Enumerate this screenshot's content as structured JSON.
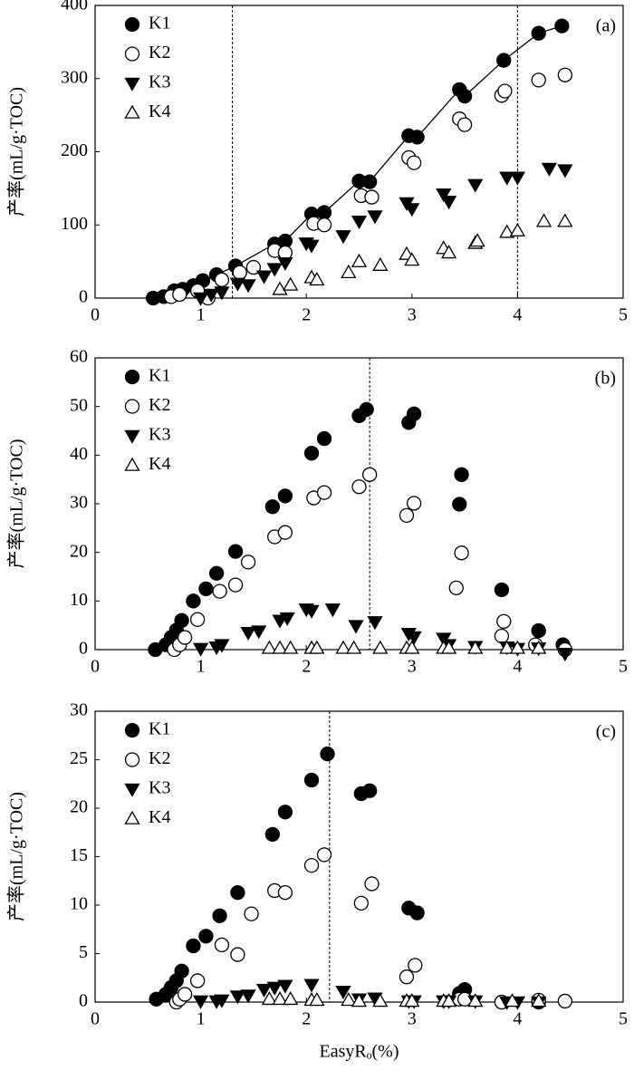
{
  "chart_data": [
    {
      "type": "scatter",
      "panel_label": "(a)",
      "ylabel": "产率(mL/g·TOC)",
      "xlim": [
        0,
        5
      ],
      "xticks": [
        0,
        1,
        2,
        3,
        4,
        5
      ],
      "ylim": [
        0,
        400
      ],
      "yticks": [
        0,
        100,
        200,
        300,
        400
      ],
      "vlines": [
        1.3,
        4.0
      ],
      "legend": "upper left",
      "series": [
        {
          "name": "K1",
          "color": "#000000",
          "marker": "circle-filled",
          "line": true,
          "x": [
            0.55,
            0.65,
            0.75,
            0.83,
            0.93,
            1.02,
            1.15,
            1.33,
            1.7,
            1.8,
            2.05,
            2.17,
            2.5,
            2.6,
            2.97,
            3.05,
            3.45,
            3.5,
            3.87,
            4.2,
            4.42
          ],
          "values": [
            0,
            2,
            10,
            12,
            17,
            24,
            32,
            44,
            74,
            78,
            115,
            117,
            160,
            159,
            222,
            220,
            285,
            276,
            325,
            362,
            372
          ]
        },
        {
          "name": "K2",
          "color": "#000000",
          "marker": "circle-open",
          "x": [
            0.72,
            0.8,
            0.97,
            1.07,
            1.2,
            1.37,
            1.5,
            1.7,
            1.8,
            2.07,
            2.17,
            2.52,
            2.62,
            2.97,
            3.02,
            3.45,
            3.5,
            3.85,
            3.88,
            4.2,
            4.45
          ],
          "values": [
            2,
            5,
            10,
            0,
            25,
            35,
            42,
            65,
            62,
            102,
            100,
            140,
            138,
            192,
            185,
            245,
            237,
            277,
            283,
            298,
            305
          ]
        },
        {
          "name": "K3",
          "color": "#000000",
          "marker": "triangle-down-filled",
          "x": [
            1.0,
            1.1,
            1.2,
            1.35,
            1.45,
            1.6,
            1.7,
            1.8,
            2.0,
            2.05,
            2.35,
            2.5,
            2.65,
            2.95,
            3.0,
            3.3,
            3.35,
            3.6,
            3.9,
            4.0,
            4.3,
            4.45
          ],
          "values": [
            0,
            5,
            8,
            20,
            18,
            30,
            40,
            48,
            75,
            72,
            85,
            105,
            112,
            130,
            122,
            142,
            132,
            155,
            165,
            165,
            177,
            175
          ]
        },
        {
          "name": "K4",
          "color": "#000000",
          "marker": "triangle-up-open",
          "x": [
            1.75,
            1.85,
            2.05,
            2.1,
            2.4,
            2.5,
            2.7,
            2.95,
            3.0,
            3.3,
            3.35,
            3.6,
            3.62,
            3.9,
            4.0,
            4.25,
            4.45
          ],
          "values": [
            12,
            18,
            28,
            25,
            35,
            50,
            45,
            60,
            52,
            68,
            62,
            75,
            78,
            90,
            92,
            105,
            105
          ]
        }
      ]
    },
    {
      "type": "scatter",
      "panel_label": "(b)",
      "ylabel": "产率(mL/g·TOC)",
      "xlim": [
        0,
        5
      ],
      "xticks": [
        0,
        1,
        2,
        3,
        4,
        5
      ],
      "ylim": [
        0,
        60
      ],
      "yticks": [
        0,
        10,
        20,
        30,
        40,
        50,
        60
      ],
      "vlines": [
        2.6
      ],
      "legend": "upper left",
      "series": [
        {
          "name": "K1",
          "color": "#000000",
          "marker": "circle-filled",
          "x": [
            0.57,
            0.67,
            0.72,
            0.77,
            0.82,
            0.93,
            1.05,
            1.15,
            1.33,
            1.68,
            1.8,
            2.05,
            2.17,
            2.5,
            2.57,
            2.97,
            3.02,
            3.45,
            3.47,
            3.85,
            4.2,
            4.43
          ],
          "values": [
            0,
            1,
            2.5,
            4,
            6,
            10,
            12.5,
            15.7,
            20.2,
            29.4,
            31.6,
            40.4,
            43.4,
            48.1,
            49.4,
            46.7,
            48.5,
            29.9,
            36,
            12.3,
            3.9,
            1.0
          ]
        },
        {
          "name": "K2",
          "color": "#000000",
          "marker": "circle-open",
          "x": [
            0.75,
            0.8,
            0.85,
            0.97,
            1.18,
            1.33,
            1.45,
            1.7,
            1.8,
            2.07,
            2.17,
            2.5,
            2.6,
            2.95,
            3.02,
            3.42,
            3.47,
            3.85,
            3.87,
            4.17,
            4.45
          ],
          "values": [
            0,
            1,
            2.5,
            6.2,
            12,
            13.3,
            18,
            23.2,
            24.1,
            31.2,
            32.3,
            33.5,
            36,
            27.6,
            30.1,
            12.7,
            19.9,
            2.8,
            5.8,
            1,
            0
          ]
        },
        {
          "name": "K3",
          "color": "#000000",
          "marker": "triangle-down-filled",
          "x": [
            1.0,
            1.15,
            1.2,
            1.45,
            1.55,
            1.75,
            1.82,
            2.0,
            2.05,
            2.25,
            2.47,
            2.65,
            2.97,
            3.02,
            3.3,
            3.35,
            3.6,
            3.9,
            4.0,
            4.2,
            4.45
          ],
          "values": [
            0.2,
            0.5,
            1,
            3.5,
            3.8,
            6,
            6.5,
            8.3,
            8.0,
            8.3,
            4.9,
            5.7,
            3.3,
            2.6,
            2.3,
            1.0,
            0.6,
            0.5,
            0.2,
            0.3,
            -0.8
          ]
        },
        {
          "name": "K4",
          "color": "#000000",
          "marker": "triangle-up-open",
          "x": [
            1.65,
            1.75,
            1.85,
            2.05,
            2.1,
            2.35,
            2.45,
            2.7,
            2.95,
            3.0,
            3.3,
            3.35,
            3.6,
            3.9,
            4.0,
            4.2
          ],
          "values": [
            0.3,
            0.3,
            0.3,
            0.3,
            0.3,
            0.3,
            0.3,
            0.3,
            0.3,
            0.3,
            0.3,
            0.3,
            0.3,
            0.3,
            0.3,
            0.3
          ]
        }
      ]
    },
    {
      "type": "scatter",
      "panel_label": "(c)",
      "ylabel": "产率(mL/g·TOC)",
      "xlabel": "EasyRₒ(%)",
      "xlim": [
        0,
        5
      ],
      "xticks": [
        0,
        1,
        2,
        3,
        4,
        5
      ],
      "ylim": [
        0,
        30
      ],
      "yticks": [
        0,
        5,
        10,
        15,
        20,
        25,
        30
      ],
      "vlines": [
        2.22
      ],
      "legend": "upper left",
      "series": [
        {
          "name": "K1",
          "color": "#000000",
          "marker": "circle-filled",
          "x": [
            0.58,
            0.67,
            0.72,
            0.77,
            0.82,
            0.93,
            1.05,
            1.18,
            1.35,
            1.68,
            1.8,
            2.05,
            2.2,
            2.52,
            2.6,
            2.97,
            3.05,
            3.45,
            3.5,
            3.85,
            4.2
          ],
          "values": [
            0.3,
            0.8,
            1.5,
            2.2,
            3.2,
            5.8,
            6.8,
            8.9,
            11.3,
            17.3,
            19.6,
            22.9,
            25.6,
            21.5,
            21.8,
            9.7,
            9.2,
            0.9,
            1.3,
            0,
            0
          ]
        },
        {
          "name": "K2",
          "color": "#000000",
          "marker": "circle-open",
          "x": [
            0.77,
            0.8,
            0.85,
            0.97,
            1.2,
            1.35,
            1.48,
            1.7,
            1.8,
            2.05,
            2.17,
            2.52,
            2.62,
            2.95,
            3.03,
            3.45,
            3.5,
            3.85,
            4.2,
            4.45
          ],
          "values": [
            0,
            0.3,
            0.8,
            2.2,
            5.9,
            4.9,
            9.1,
            11.5,
            11.3,
            14.1,
            15.2,
            10.2,
            12.2,
            2.6,
            3.8,
            0.3,
            0.3,
            0,
            0.2,
            0.1
          ]
        },
        {
          "name": "K3",
          "color": "#000000",
          "marker": "triangle-down-filled",
          "x": [
            1.0,
            1.15,
            1.2,
            1.35,
            1.45,
            1.6,
            1.7,
            1.8,
            2.05,
            2.35,
            2.5,
            2.65,
            2.97,
            3.02,
            3.3,
            3.35,
            3.6,
            3.9,
            4.0,
            4.2
          ],
          "values": [
            0.1,
            0.1,
            0.2,
            0.6,
            0.7,
            1.3,
            1.5,
            1.7,
            1.8,
            1.1,
            0.3,
            0.4,
            0.1,
            0.1,
            0.1,
            0.1,
            0.1,
            0,
            0,
            0
          ]
        },
        {
          "name": "K4",
          "color": "#000000",
          "marker": "triangle-up-open",
          "x": [
            1.65,
            1.75,
            1.85,
            2.05,
            2.1,
            2.4,
            2.5,
            2.7,
            2.95,
            3.0,
            3.3,
            3.35,
            3.6,
            3.95,
            4.2
          ],
          "values": [
            0.3,
            0.3,
            0.3,
            0.2,
            0.2,
            0.2,
            0.1,
            0.1,
            0.1,
            0.1,
            0.1,
            0.1,
            0.1,
            0.1,
            0.1
          ]
        }
      ]
    }
  ]
}
